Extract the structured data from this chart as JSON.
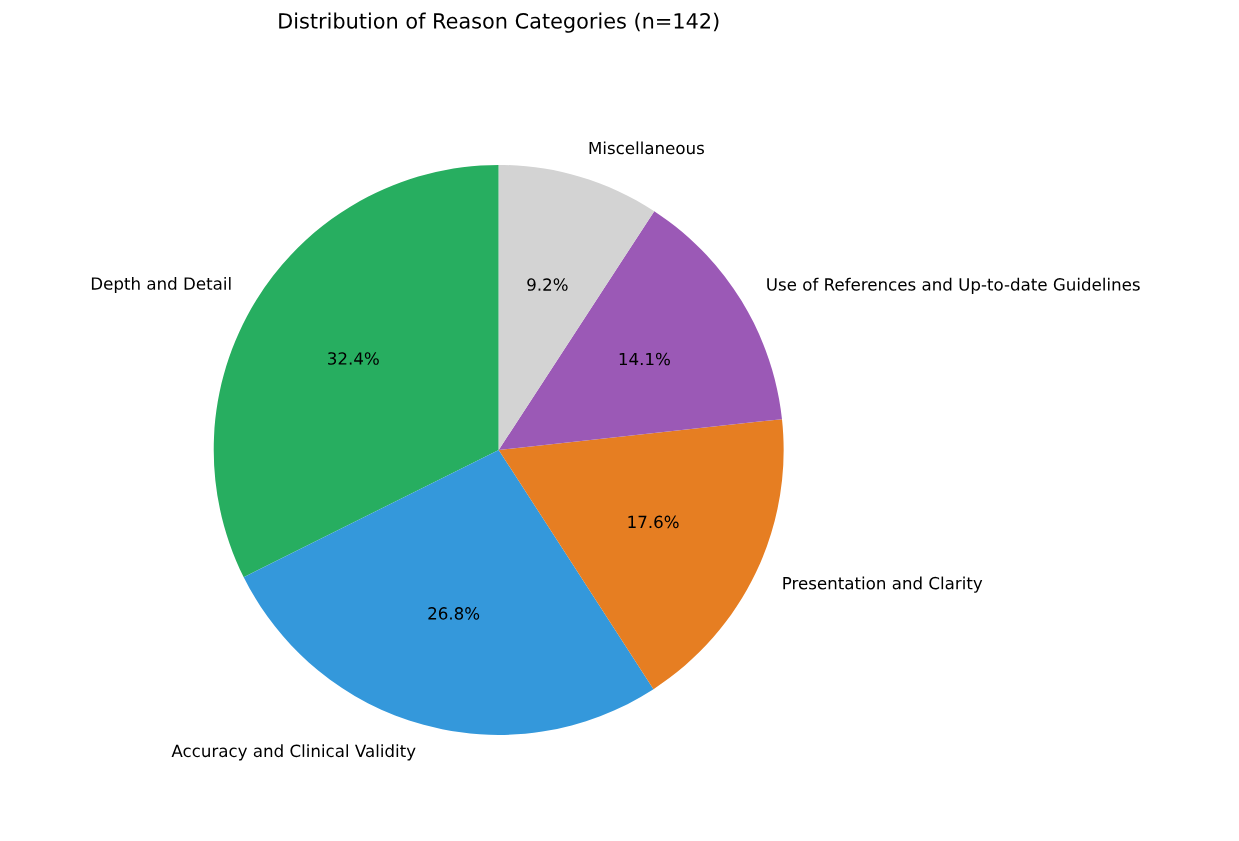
{
  "chart_data": {
    "type": "pie",
    "title": "Distribution of Reason Categories (n=142)",
    "categories": [
      "Depth and Detail",
      "Accuracy and Clinical Validity",
      "Presentation and Clarity",
      "Use of References and Up-to-date Guidelines",
      "Miscellaneous"
    ],
    "values": [
      32.4,
      26.8,
      17.6,
      14.1,
      9.2
    ],
    "value_labels": [
      "32.4%",
      "26.8%",
      "17.6%",
      "14.1%",
      "9.2%"
    ],
    "colors": [
      "#27ae60",
      "#3498db",
      "#e67e22",
      "#9b59b6",
      "#d3d3d3"
    ]
  }
}
